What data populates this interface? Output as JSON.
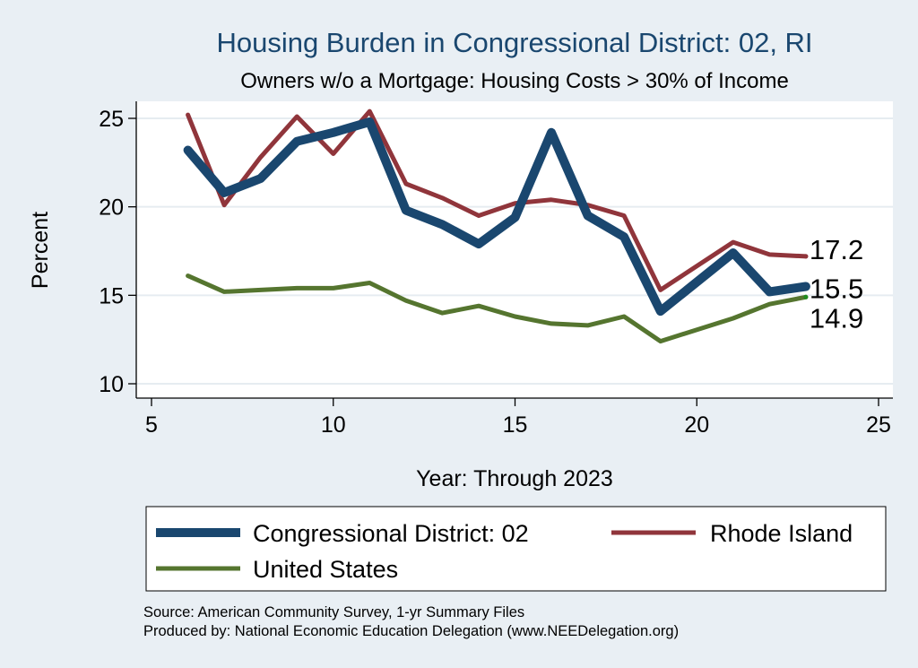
{
  "chart_data": {
    "type": "line",
    "title": "Housing Burden in Congressional District:  02, RI",
    "subtitle": "Owners w/o a Mortgage: Housing Costs > 30% of Income",
    "xlabel": "Year: Through 2023",
    "ylabel": "Percent",
    "xlim": [
      5,
      25
    ],
    "ylim": [
      10,
      25
    ],
    "xticks": [
      5,
      10,
      15,
      20,
      25
    ],
    "yticks": [
      10,
      15,
      20,
      25
    ],
    "grid": true,
    "legend_position": "bottom",
    "series": [
      {
        "name": "Congressional District:  02",
        "color": "#1a476f",
        "x": [
          6,
          7,
          8,
          9,
          10,
          11,
          12,
          13,
          14,
          15,
          16,
          17,
          18,
          19,
          21,
          22,
          23
        ],
        "values": [
          23.2,
          20.8,
          21.6,
          23.7,
          24.2,
          24.8,
          19.8,
          19.0,
          17.9,
          19.4,
          24.2,
          19.5,
          18.3,
          14.1,
          17.4,
          15.2,
          15.5
        ],
        "end_label": "15.5"
      },
      {
        "name": "Rhode Island",
        "color": "#90353b",
        "x": [
          6,
          7,
          8,
          9,
          10,
          11,
          12,
          13,
          14,
          15,
          16,
          17,
          18,
          19,
          21,
          22,
          23
        ],
        "values": [
          25.2,
          20.1,
          22.8,
          25.1,
          23.0,
          25.4,
          21.3,
          20.5,
          19.5,
          20.2,
          20.4,
          20.1,
          19.5,
          15.3,
          18.0,
          17.3,
          17.2
        ],
        "end_label": "17.2"
      },
      {
        "name": "United States",
        "color": "#55752f",
        "x": [
          6,
          7,
          8,
          9,
          10,
          11,
          12,
          13,
          14,
          15,
          16,
          17,
          18,
          19,
          21,
          22,
          23
        ],
        "values": [
          16.1,
          15.2,
          15.3,
          15.4,
          15.4,
          15.7,
          14.7,
          14.0,
          14.4,
          13.8,
          13.4,
          13.3,
          13.8,
          12.4,
          13.7,
          14.5,
          14.9
        ],
        "end_label": "14.9"
      }
    ]
  },
  "footer": {
    "source": "Source: American Community Survey, 1-yr Summary Files",
    "produced_by": "Produced by: National Economic Education Delegation (www.NEEDelegation.org)"
  }
}
